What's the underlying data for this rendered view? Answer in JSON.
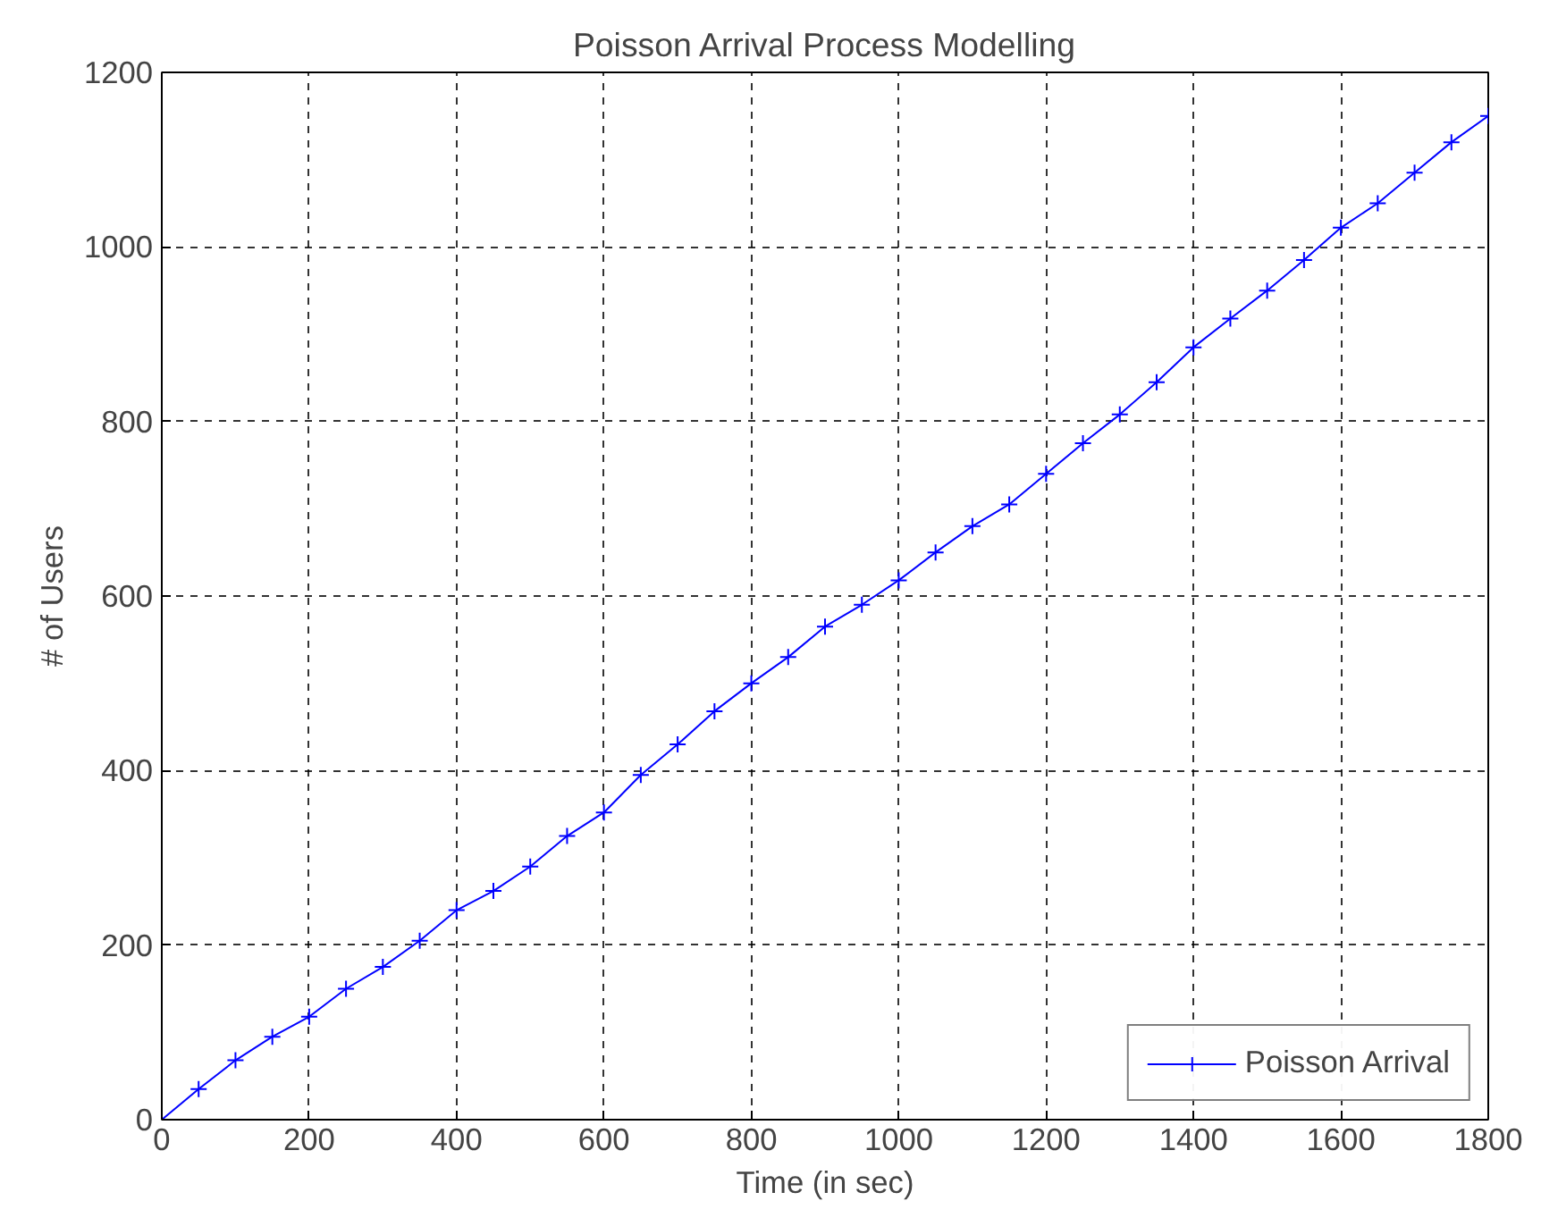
{
  "chart_data": {
    "type": "line",
    "title": "Poisson Arrival Process Modelling",
    "xlabel": "Time (in sec)",
    "ylabel": "# of Users",
    "xlim": [
      0,
      1800
    ],
    "ylim": [
      0,
      1200
    ],
    "xticks": [
      0,
      200,
      400,
      600,
      800,
      1000,
      1200,
      1400,
      1600,
      1800
    ],
    "yticks": [
      0,
      200,
      400,
      600,
      800,
      1000,
      1200
    ],
    "grid": true,
    "legend": "bottom right",
    "marker": "cross",
    "line_style": "solid",
    "x": [
      0,
      50,
      100,
      150,
      200,
      250,
      300,
      350,
      400,
      450,
      500,
      550,
      600,
      650,
      700,
      750,
      800,
      850,
      900,
      950,
      1000,
      1050,
      1100,
      1150,
      1200,
      1250,
      1300,
      1350,
      1400,
      1450,
      1500,
      1550,
      1600,
      1650,
      1700,
      1750,
      1800
    ],
    "series": [
      {
        "name": "Poisson Arrival",
        "color": "#0000ff",
        "values": [
          0,
          35,
          68,
          95,
          118,
          150,
          175,
          205,
          240,
          262,
          290,
          325,
          352,
          395,
          430,
          468,
          500,
          530,
          565,
          590,
          618,
          650,
          680,
          705,
          740,
          775,
          808,
          845,
          885,
          918,
          950,
          985,
          1022,
          1050,
          1085,
          1120,
          1150
        ]
      }
    ]
  }
}
